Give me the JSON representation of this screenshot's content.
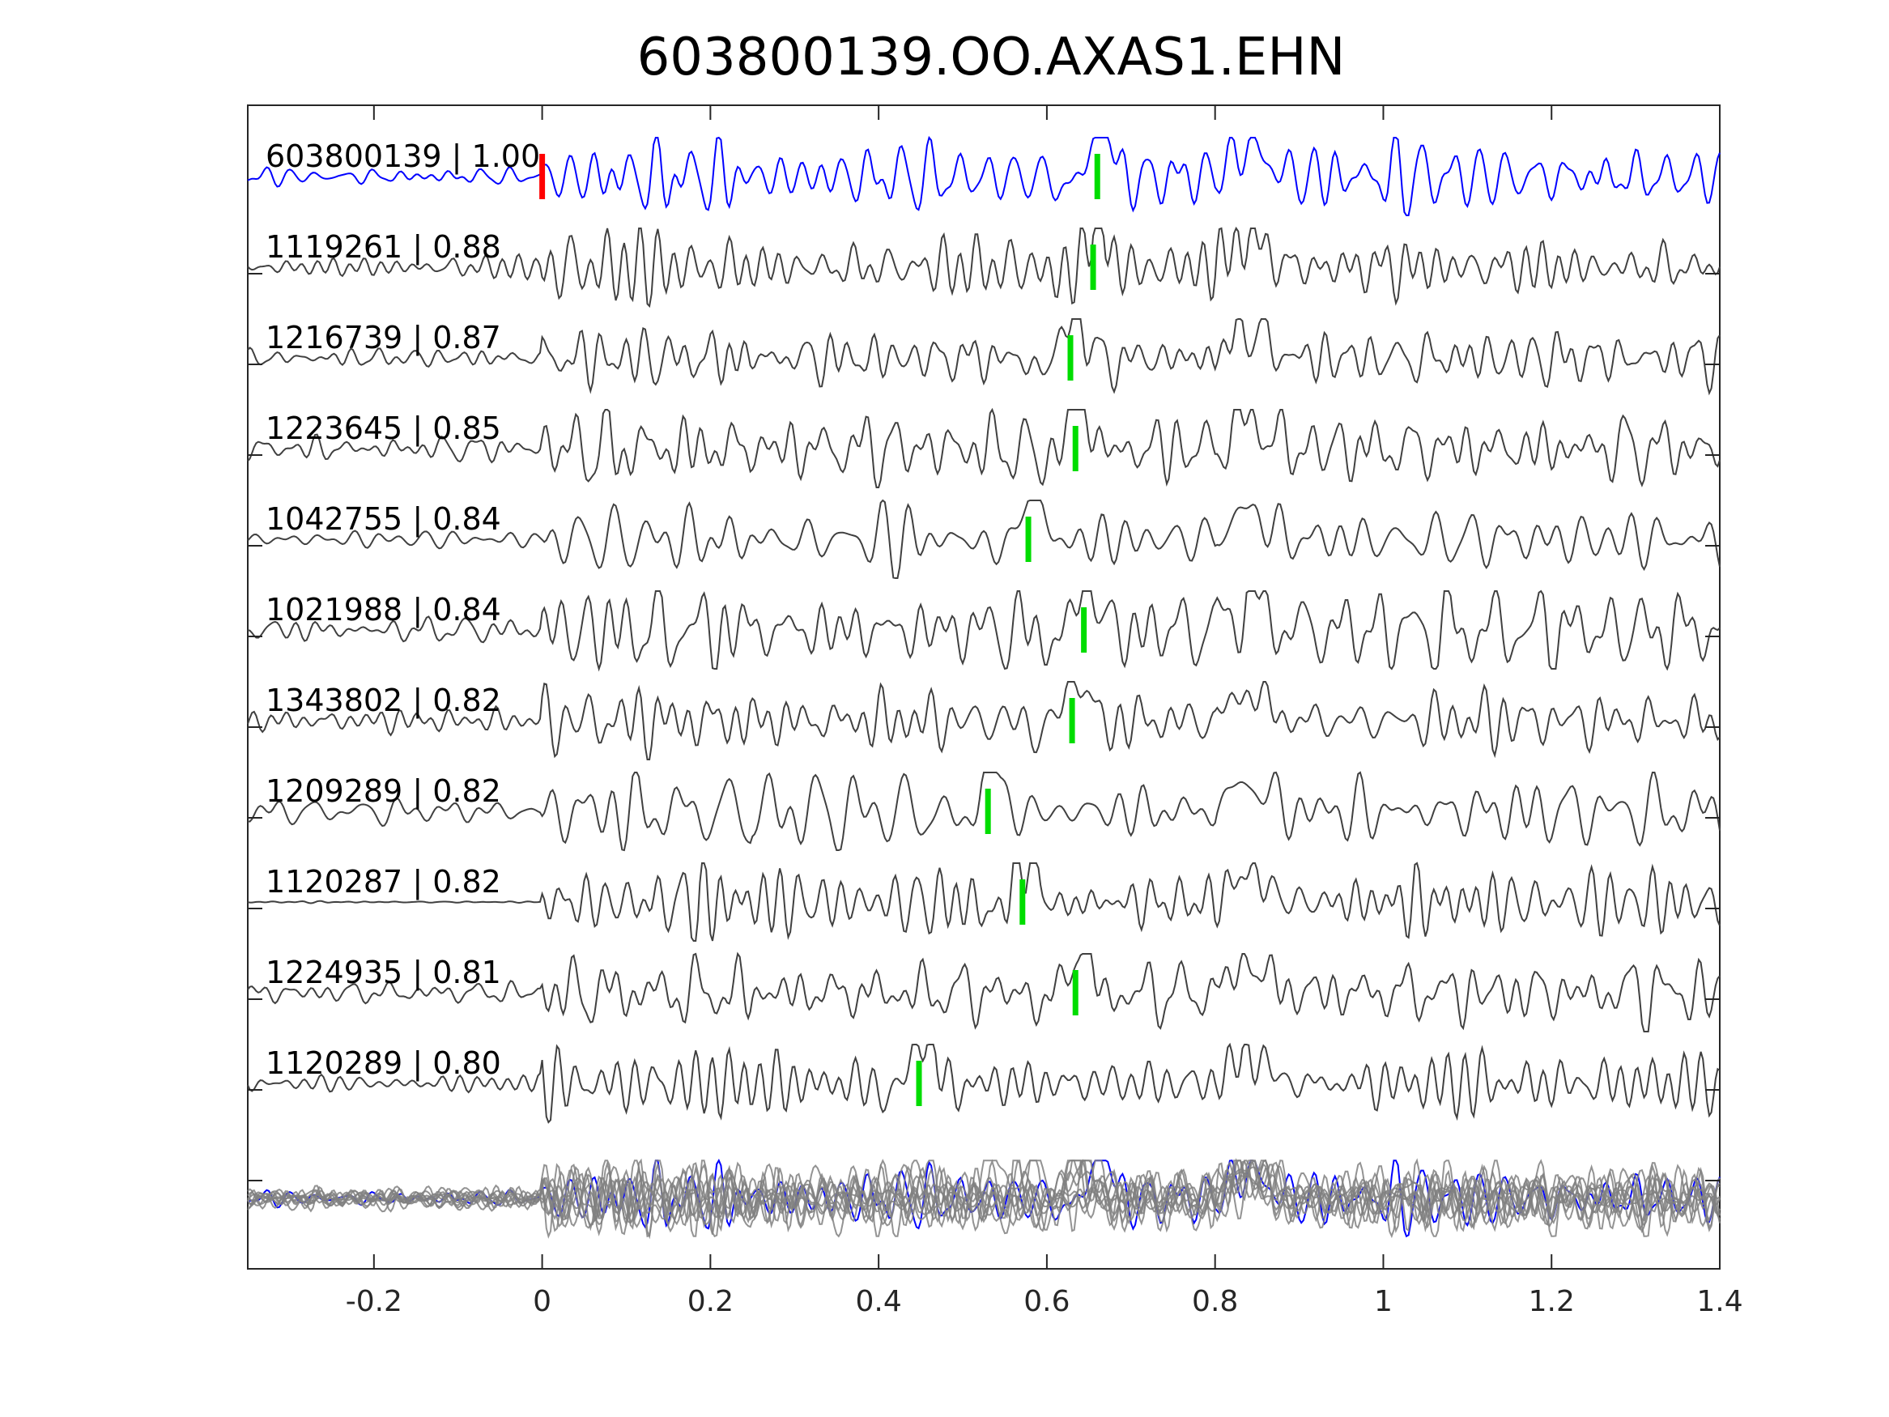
{
  "chart_data": {
    "type": "line",
    "title": "603800139.OO.AXAS1.EHN",
    "xlabel": "",
    "ylabel": "",
    "xlim": [
      -0.35,
      1.4
    ],
    "xticks": [
      -0.2,
      0,
      0.2,
      0.4,
      0.6,
      0.8,
      1,
      1.2,
      1.4
    ],
    "xtick_labels": [
      "-0.2",
      "0",
      "0.2",
      "0.4",
      "0.6",
      "0.8",
      "1",
      "1.2",
      "1.4"
    ],
    "grid": false,
    "legend": "none",
    "colors": {
      "reference": "#0000ff",
      "trace": "#404040",
      "overlay": "#808080",
      "reference_pick": "#ff0000",
      "pick": "#00dd00"
    },
    "series": [
      {
        "name": "603800139 | 1.00",
        "id": "603800139",
        "cc": 1.0,
        "pick_time": 0.66,
        "ref_pick_time": 0.0,
        "reference": true
      },
      {
        "name": "1119261 | 0.88",
        "id": "1119261",
        "cc": 0.88,
        "pick_time": 0.655
      },
      {
        "name": "1216739 | 0.87",
        "id": "1216739",
        "cc": 0.87,
        "pick_time": 0.628
      },
      {
        "name": "1223645 | 0.85",
        "id": "1223645",
        "cc": 0.85,
        "pick_time": 0.634
      },
      {
        "name": "1042755 | 0.84",
        "id": "1042755",
        "cc": 0.84,
        "pick_time": 0.578
      },
      {
        "name": "1021988 | 0.84",
        "id": "1021988",
        "cc": 0.84,
        "pick_time": 0.644
      },
      {
        "name": "1343802 | 0.82",
        "id": "1343802",
        "cc": 0.82,
        "pick_time": 0.63
      },
      {
        "name": "1209289 | 0.82",
        "id": "1209289",
        "cc": 0.82,
        "pick_time": 0.53
      },
      {
        "name": "1120287 | 0.82",
        "id": "1120287",
        "cc": 0.82,
        "pick_time": 0.571
      },
      {
        "name": "1224935 | 0.81",
        "id": "1224935",
        "cc": 0.81,
        "pick_time": 0.634
      },
      {
        "name": "1120289 | 0.80",
        "id": "1120289",
        "cc": 0.8,
        "pick_time": 0.448
      }
    ]
  }
}
